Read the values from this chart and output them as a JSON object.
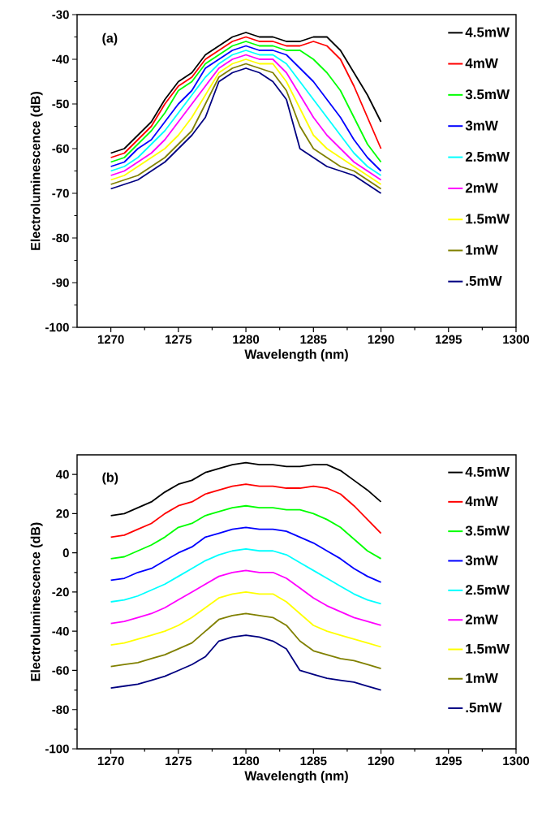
{
  "chart_data": [
    {
      "type": "line",
      "xlabel": "Wavelength (nm)",
      "ylabel": "Electroluminescence (dB)",
      "annotations": [
        "(a)"
      ],
      "legend": "top right",
      "marker": "none",
      "line_style": "solid",
      "xlim": [
        1267.5,
        1300
      ],
      "xticks": [
        1270,
        1275,
        1280,
        1285,
        1290,
        1295,
        1300
      ],
      "ylim": [
        -100,
        -30
      ],
      "yticks": [
        -100,
        -90,
        -80,
        -70,
        -60,
        -50,
        -40,
        -30
      ],
      "x": [
        1270,
        1271,
        1272,
        1273,
        1274,
        1275,
        1276,
        1277,
        1278,
        1279,
        1280,
        1281,
        1282,
        1283,
        1284,
        1285,
        1286,
        1287,
        1288,
        1289,
        1290
      ],
      "series": [
        {
          "name": "4.5mW",
          "color": "#000000",
          "values": [
            -61,
            -60,
            -57,
            -54,
            -49,
            -45,
            -43,
            -39,
            -37,
            -35,
            -34,
            -35,
            -35,
            -36,
            -36,
            -35,
            -35,
            -38,
            -43,
            -48,
            -54
          ]
        },
        {
          "name": "4mW",
          "color": "#ff0000",
          "values": [
            -62,
            -61,
            -58,
            -55,
            -50,
            -46,
            -44,
            -40,
            -38,
            -36,
            -35,
            -36,
            -36,
            -37,
            -37,
            -36,
            -37,
            -40,
            -46,
            -53,
            -60
          ]
        },
        {
          "name": "3.5mW",
          "color": "#00ff00",
          "values": [
            -63,
            -62,
            -59,
            -56,
            -52,
            -47,
            -45,
            -41,
            -39,
            -37,
            -36,
            -37,
            -37,
            -38,
            -38,
            -40,
            -43,
            -47,
            -53,
            -59,
            -63
          ]
        },
        {
          "name": "3mW",
          "color": "#0000ff",
          "values": [
            -64,
            -63,
            -60,
            -58,
            -54,
            -50,
            -47,
            -42,
            -40,
            -38,
            -37,
            -38,
            -38,
            -39,
            -42,
            -45,
            -49,
            -53,
            -58,
            -62,
            -65
          ]
        },
        {
          "name": "2.5mW",
          "color": "#00ffff",
          "values": [
            -65,
            -64,
            -62,
            -59,
            -56,
            -52,
            -48,
            -44,
            -41,
            -39,
            -38,
            -39,
            -39,
            -41,
            -45,
            -49,
            -53,
            -57,
            -61,
            -64,
            -66
          ]
        },
        {
          "name": "2mW",
          "color": "#ff00ff",
          "values": [
            -66,
            -65,
            -63,
            -61,
            -58,
            -54,
            -50,
            -46,
            -42,
            -40,
            -39,
            -40,
            -40,
            -43,
            -48,
            -53,
            -57,
            -60,
            -63,
            -65,
            -67
          ]
        },
        {
          "name": "1.5mW",
          "color": "#ffff00",
          "values": [
            -67,
            -66,
            -64,
            -62,
            -60,
            -57,
            -53,
            -48,
            -43,
            -41,
            -40,
            -41,
            -41,
            -45,
            -51,
            -57,
            -60,
            -62,
            -64,
            -66,
            -68
          ]
        },
        {
          "name": "1mW",
          "color": "#808000",
          "values": [
            -68,
            -67,
            -66,
            -64,
            -62,
            -59,
            -56,
            -50,
            -44,
            -42,
            -41,
            -42,
            -43,
            -47,
            -55,
            -60,
            -62,
            -64,
            -65,
            -67,
            -69
          ]
        },
        {
          "name": ".5mW",
          "color": "#000080",
          "values": [
            -69,
            -68,
            -67,
            -65,
            -63,
            -60,
            -57,
            -53,
            -45,
            -43,
            -42,
            -43,
            -45,
            -49,
            -60,
            -62,
            -64,
            -65,
            -66,
            -68,
            -70
          ]
        }
      ]
    },
    {
      "type": "line",
      "xlabel": "Wavelength (nm)",
      "ylabel": "Electroluminescence (dB)",
      "annotations": [
        "(b)"
      ],
      "legend": "top right",
      "marker": "none",
      "line_style": "solid",
      "xlim": [
        1267.5,
        1300
      ],
      "xticks": [
        1270,
        1275,
        1280,
        1285,
        1290,
        1295,
        1300
      ],
      "ylim": [
        -100,
        50
      ],
      "yticks": [
        -100,
        -80,
        -60,
        -40,
        -20,
        0,
        20,
        40
      ],
      "x": [
        1270,
        1271,
        1272,
        1273,
        1274,
        1275,
        1276,
        1277,
        1278,
        1279,
        1280,
        1281,
        1282,
        1283,
        1284,
        1285,
        1286,
        1287,
        1288,
        1289,
        1290
      ],
      "series": [
        {
          "name": "4.5mW",
          "color": "#000000",
          "values": [
            19,
            20,
            23,
            26,
            31,
            35,
            37,
            41,
            43,
            45,
            46,
            45,
            45,
            44,
            44,
            45,
            45,
            42,
            37,
            32,
            26
          ]
        },
        {
          "name": "4mW",
          "color": "#ff0000",
          "values": [
            8,
            9,
            12,
            15,
            20,
            24,
            26,
            30,
            32,
            34,
            35,
            34,
            34,
            33,
            33,
            34,
            33,
            30,
            24,
            17,
            10
          ]
        },
        {
          "name": "3.5mW",
          "color": "#00ff00",
          "values": [
            -3,
            -2,
            1,
            4,
            8,
            13,
            15,
            19,
            21,
            23,
            24,
            23,
            23,
            22,
            22,
            20,
            17,
            13,
            7,
            1,
            -3
          ]
        },
        {
          "name": "3mW",
          "color": "#0000ff",
          "values": [
            -14,
            -13,
            -10,
            -8,
            -4,
            0,
            3,
            8,
            10,
            12,
            13,
            12,
            12,
            11,
            8,
            5,
            1,
            -3,
            -8,
            -12,
            -15
          ]
        },
        {
          "name": "2.5mW",
          "color": "#00ffff",
          "values": [
            -25,
            -24,
            -22,
            -19,
            -16,
            -12,
            -8,
            -4,
            -1,
            1,
            2,
            1,
            1,
            -1,
            -5,
            -9,
            -13,
            -17,
            -21,
            -24,
            -26
          ]
        },
        {
          "name": "2mW",
          "color": "#ff00ff",
          "values": [
            -36,
            -35,
            -33,
            -31,
            -28,
            -24,
            -20,
            -16,
            -12,
            -10,
            -9,
            -10,
            -10,
            -13,
            -18,
            -23,
            -27,
            -30,
            -33,
            -35,
            -37
          ]
        },
        {
          "name": "1.5mW",
          "color": "#ffff00",
          "values": [
            -47,
            -46,
            -44,
            -42,
            -40,
            -37,
            -33,
            -28,
            -23,
            -21,
            -20,
            -21,
            -21,
            -25,
            -31,
            -37,
            -40,
            -42,
            -44,
            -46,
            -48
          ]
        },
        {
          "name": "1mW",
          "color": "#808000",
          "values": [
            -58,
            -57,
            -56,
            -54,
            -52,
            -49,
            -46,
            -40,
            -34,
            -32,
            -31,
            -32,
            -33,
            -37,
            -45,
            -50,
            -52,
            -54,
            -55,
            -57,
            -59
          ]
        },
        {
          "name": ".5mW",
          "color": "#000080",
          "values": [
            -69,
            -68,
            -67,
            -65,
            -63,
            -60,
            -57,
            -53,
            -45,
            -43,
            -42,
            -43,
            -45,
            -49,
            -60,
            -62,
            -64,
            -65,
            -66,
            -68,
            -70
          ]
        }
      ]
    }
  ]
}
